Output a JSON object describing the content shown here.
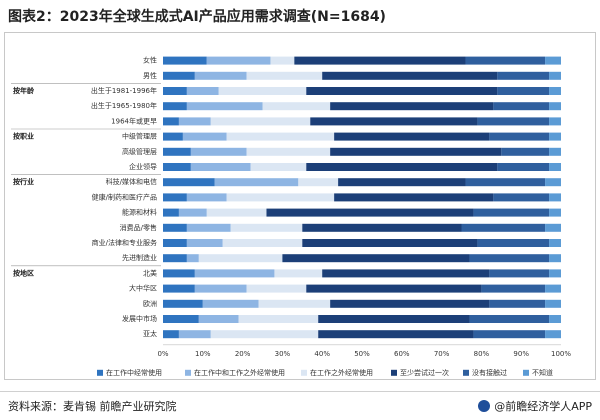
{
  "title": "图表2：2023年全球生成式AI产品应用需求调查(N=1684)",
  "source": "资料来源：麦肯锡 前瞻产业研究院",
  "brand": "@前瞻经济学人APP",
  "colors": {
    "c1": "#2f74c0",
    "c2": "#8eb5e3",
    "c3": "#dbe6f3",
    "c4": "#1c3f78",
    "c5": "#2f5f9e",
    "c6": "#5b9bd5"
  },
  "chart_data": {
    "type": "bar",
    "orientation": "horizontal",
    "stacked": true,
    "title": "图表2：2023年全球生成式AI产品应用需求调查(N=1684)",
    "xlim": [
      0,
      100
    ],
    "x_ticks": [
      "0%",
      "10%",
      "20%",
      "30%",
      "40%",
      "50%",
      "60%",
      "70%",
      "80%",
      "90%",
      "100%"
    ],
    "grid": false,
    "legend_position": "bottom",
    "groups": [
      {
        "name": "",
        "rows": [
          "女性",
          "男性"
        ]
      },
      {
        "name": "按年龄",
        "rows": [
          "出生于1981-1996年",
          "出生于1965-1980年",
          "1964年或更早"
        ]
      },
      {
        "name": "按职业",
        "rows": [
          "中级管理层",
          "高级管理层",
          "企业领导"
        ]
      },
      {
        "name": "按行业",
        "rows": [
          "科技/媒体和电信",
          "健康/制药和医疗产品",
          "能源和材料",
          "消费品/零售",
          "商业/法律和专业服务",
          "先进制造业"
        ]
      },
      {
        "name": "按地区",
        "rows": [
          "北美",
          "大中华区",
          "欧洲",
          "发展中市场",
          "亚太"
        ]
      }
    ],
    "categories": [
      "女性",
      "男性",
      "出生于1981-1996年",
      "出生于1965-1980年",
      "1964年或更早",
      "中级管理层",
      "高级管理层",
      "企业领导",
      "科技/媒体和电信",
      "健康/制药和医疗产品",
      "能源和材料",
      "消费品/零售",
      "商业/法律和专业服务",
      "先进制造业",
      "北美",
      "大中华区",
      "欧洲",
      "发展中市场",
      "亚太"
    ],
    "series": [
      {
        "name": "在工作中经常使用",
        "color": "#2f74c0",
        "values": [
          11,
          8,
          6,
          6,
          4,
          5,
          7,
          7,
          13,
          6,
          4,
          6,
          6,
          6,
          8,
          8,
          10,
          9,
          4
        ]
      },
      {
        "name": "在工作中和工作之外经常使用",
        "color": "#8eb5e3",
        "values": [
          16,
          13,
          8,
          19,
          8,
          11,
          14,
          15,
          21,
          10,
          7,
          11,
          9,
          3,
          20,
          13,
          14,
          10,
          8
        ]
      },
      {
        "name": "在工作之外经常使用",
        "color": "#dbe6f3",
        "values": [
          6,
          19,
          22,
          17,
          25,
          27,
          21,
          14,
          10,
          27,
          15,
          18,
          20,
          21,
          12,
          15,
          18,
          20,
          27
        ]
      },
      {
        "name": "至少尝试过一次",
        "color": "#1c3f78",
        "values": [
          43,
          44,
          48,
          41,
          42,
          39,
          43,
          48,
          32,
          40,
          52,
          40,
          44,
          47,
          42,
          44,
          40,
          38,
          39
        ]
      },
      {
        "name": "没有接触过",
        "color": "#2f5f9e",
        "values": [
          20,
          13,
          13,
          14,
          18,
          15,
          12,
          13,
          20,
          14,
          19,
          21,
          18,
          20,
          15,
          16,
          14,
          20,
          18
        ]
      },
      {
        "name": "不知道",
        "color": "#5b9bd5",
        "values": [
          4,
          3,
          3,
          3,
          3,
          3,
          3,
          3,
          4,
          3,
          3,
          4,
          3,
          3,
          3,
          4,
          4,
          3,
          4
        ]
      }
    ]
  }
}
